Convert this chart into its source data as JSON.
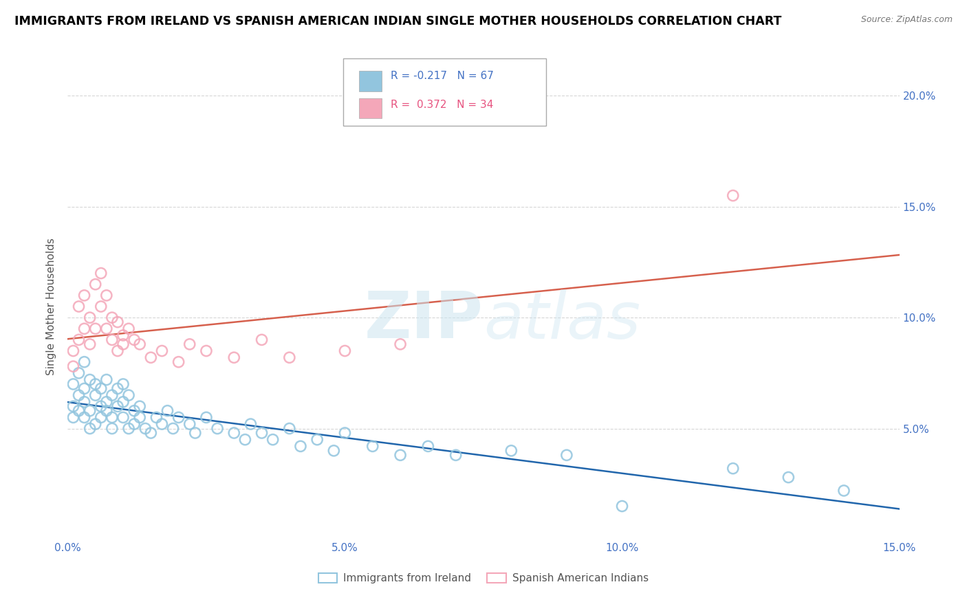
{
  "title": "IMMIGRANTS FROM IRELAND VS SPANISH AMERICAN INDIAN SINGLE MOTHER HOUSEHOLDS CORRELATION CHART",
  "source": "Source: ZipAtlas.com",
  "ylabel": "Single Mother Households",
  "blue_label": "Immigrants from Ireland",
  "pink_label": "Spanish American Indians",
  "blue_R": -0.217,
  "blue_N": 67,
  "pink_R": 0.372,
  "pink_N": 34,
  "blue_color": "#92c5de",
  "pink_color": "#f4a7b9",
  "blue_line_color": "#2166ac",
  "pink_line_color": "#d6604d",
  "xlim": [
    0.0,
    0.15
  ],
  "ylim": [
    0.0,
    0.21
  ],
  "blue_scatter_x": [
    0.001,
    0.001,
    0.001,
    0.002,
    0.002,
    0.002,
    0.003,
    0.003,
    0.003,
    0.003,
    0.004,
    0.004,
    0.004,
    0.005,
    0.005,
    0.005,
    0.006,
    0.006,
    0.006,
    0.007,
    0.007,
    0.007,
    0.008,
    0.008,
    0.008,
    0.009,
    0.009,
    0.01,
    0.01,
    0.01,
    0.011,
    0.011,
    0.012,
    0.012,
    0.013,
    0.013,
    0.014,
    0.015,
    0.016,
    0.017,
    0.018,
    0.019,
    0.02,
    0.022,
    0.023,
    0.025,
    0.027,
    0.03,
    0.032,
    0.033,
    0.035,
    0.037,
    0.04,
    0.042,
    0.045,
    0.048,
    0.05,
    0.055,
    0.06,
    0.065,
    0.07,
    0.08,
    0.09,
    0.1,
    0.12,
    0.13,
    0.14
  ],
  "blue_scatter_y": [
    0.06,
    0.055,
    0.07,
    0.065,
    0.058,
    0.075,
    0.062,
    0.068,
    0.055,
    0.08,
    0.05,
    0.072,
    0.058,
    0.065,
    0.07,
    0.052,
    0.06,
    0.068,
    0.055,
    0.062,
    0.058,
    0.072,
    0.05,
    0.065,
    0.055,
    0.06,
    0.068,
    0.062,
    0.055,
    0.07,
    0.05,
    0.065,
    0.058,
    0.052,
    0.06,
    0.055,
    0.05,
    0.048,
    0.055,
    0.052,
    0.058,
    0.05,
    0.055,
    0.052,
    0.048,
    0.055,
    0.05,
    0.048,
    0.045,
    0.052,
    0.048,
    0.045,
    0.05,
    0.042,
    0.045,
    0.04,
    0.048,
    0.042,
    0.038,
    0.042,
    0.038,
    0.04,
    0.038,
    0.015,
    0.032,
    0.028,
    0.022
  ],
  "pink_scatter_x": [
    0.001,
    0.001,
    0.002,
    0.002,
    0.003,
    0.003,
    0.004,
    0.004,
    0.005,
    0.005,
    0.006,
    0.006,
    0.007,
    0.007,
    0.008,
    0.008,
    0.009,
    0.009,
    0.01,
    0.01,
    0.011,
    0.012,
    0.013,
    0.015,
    0.017,
    0.02,
    0.022,
    0.025,
    0.03,
    0.035,
    0.04,
    0.05,
    0.06,
    0.12
  ],
  "pink_scatter_y": [
    0.085,
    0.078,
    0.09,
    0.105,
    0.095,
    0.11,
    0.1,
    0.088,
    0.115,
    0.095,
    0.12,
    0.105,
    0.095,
    0.11,
    0.1,
    0.09,
    0.085,
    0.098,
    0.092,
    0.088,
    0.095,
    0.09,
    0.088,
    0.082,
    0.085,
    0.08,
    0.088,
    0.085,
    0.082,
    0.09,
    0.082,
    0.085,
    0.088,
    0.155
  ]
}
